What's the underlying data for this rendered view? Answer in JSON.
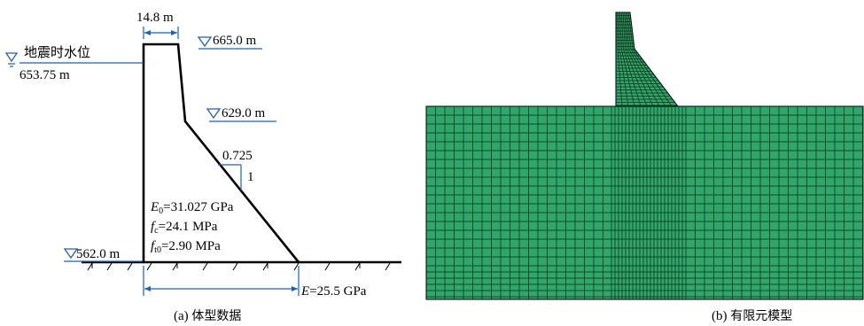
{
  "left_panel": {
    "top_width": "14.8 m",
    "crest_elev": "665.0 m",
    "water_label": "地震时水位",
    "water_elev": "653.75 m",
    "break_elev": "629.0 m",
    "slope_h": "0.725",
    "slope_v": "1",
    "base_elev": "562.0 m",
    "e0": "=31.027 GPa",
    "fc": "=24.1 MPa",
    "ft0": "=2.90 MPa",
    "foundation_e": "=25.5 GPa",
    "e0_sym": "E",
    "e0_sub": "0",
    "fc_sym": "f",
    "fc_sub": "c",
    "ft0_sym": "f",
    "ft0_sub": "t0",
    "fe_sym": "E",
    "caption_prefix": "(a) ",
    "caption_text": "体型数据"
  },
  "right_panel": {
    "caption_prefix": "(b) ",
    "caption_text": "有限元模型",
    "mesh_color": "#2fa66a"
  }
}
